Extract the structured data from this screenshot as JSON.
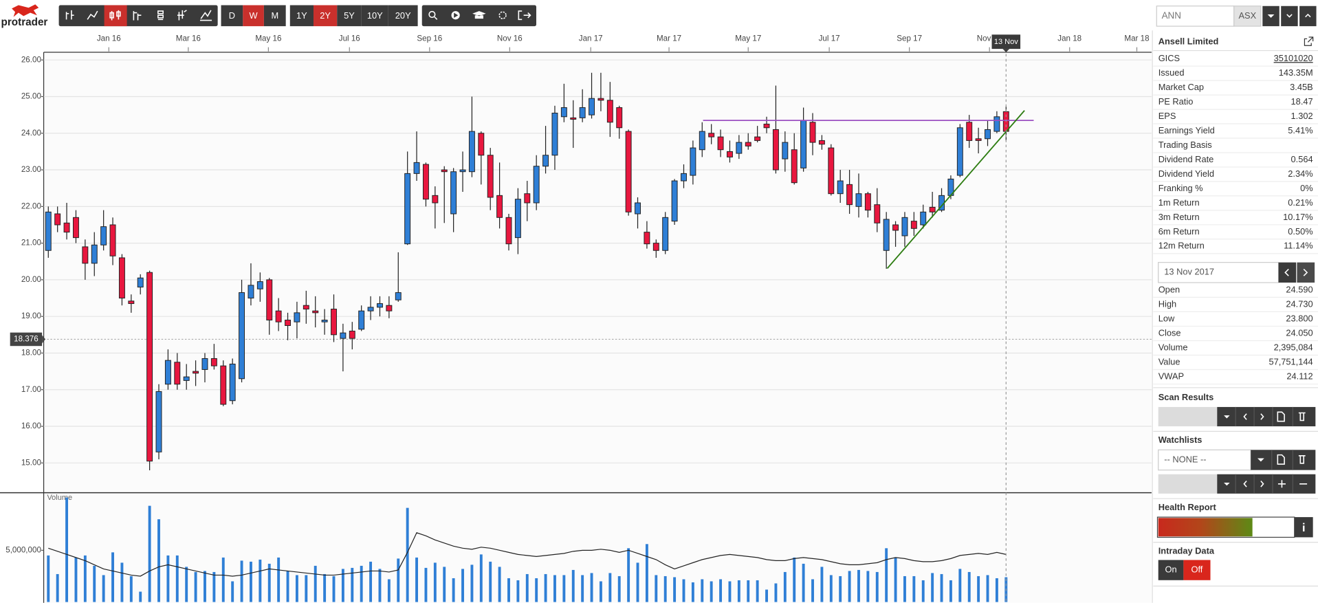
{
  "toolbar": {
    "logo": "protrader",
    "intervals": [
      "D",
      "W",
      "M"
    ],
    "active_interval": "W",
    "ranges": [
      "1Y",
      "2Y",
      "5Y",
      "10Y",
      "20Y"
    ],
    "active_range": "2Y"
  },
  "chart_data": [
    {
      "type": "candlestick",
      "up_color": "#2f7fd6",
      "down_color": "#e8173f",
      "open": [
        20.8,
        21.8,
        21.55,
        21.7,
        20.9,
        20.45,
        20.95,
        21.5,
        20.6,
        19.42,
        19.8,
        20.2,
        15.3,
        17.15,
        17.75,
        17.25,
        17.5,
        17.55,
        17.85,
        17.65,
        16.7,
        17.3,
        19.5,
        19.75,
        20.0,
        19.15,
        18.9,
        18.85,
        19.3,
        19.15,
        18.85,
        19.2,
        18.4,
        18.6,
        18.65,
        19.15,
        19.25,
        19.3,
        19.45,
        20.98,
        22.9,
        23.15,
        22.3,
        23.0,
        21.8,
        22.95,
        22.95,
        24.0,
        23.4,
        22.3,
        21.7,
        21.15,
        22.35,
        22.1,
        23.1,
        23.4,
        24.45,
        24.42,
        24.42,
        24.5,
        24.95,
        24.9,
        24.7,
        24.05,
        21.8,
        21.3,
        21.0,
        20.8,
        21.6,
        22.7,
        22.85,
        23.55,
        24.0,
        23.9,
        23.5,
        23.45,
        23.75,
        23.9,
        24.25,
        24.1,
        23.3,
        23.55,
        23.05,
        24.3,
        23.8,
        23.6,
        22.35,
        22.6,
        22.0,
        22.35,
        22.05,
        20.8,
        21.5,
        21.2,
        21.6,
        21.5,
        21.98,
        21.9,
        22.3,
        22.85,
        24.3,
        23.85,
        23.85,
        24.05,
        24.59
      ],
      "high": [
        22.0,
        22.0,
        22.1,
        21.9,
        21.1,
        21.3,
        21.9,
        21.7,
        20.7,
        19.6,
        20.15,
        20.25,
        17.15,
        18.1,
        18.0,
        17.7,
        17.8,
        18.0,
        18.25,
        17.8,
        17.85,
        20.0,
        20.45,
        20.2,
        20.05,
        19.5,
        19.1,
        19.4,
        19.7,
        19.55,
        19.2,
        19.6,
        18.8,
        18.85,
        19.3,
        19.55,
        19.55,
        19.55,
        20.75,
        23.5,
        24.05,
        23.2,
        22.55,
        23.1,
        23.05,
        23.5,
        25.0,
        24.05,
        23.6,
        23.2,
        21.8,
        22.5,
        22.7,
        23.4,
        24.2,
        24.75,
        25.35,
        24.9,
        25.2,
        25.65,
        25.65,
        25.4,
        24.75,
        24.1,
        22.25,
        21.6,
        21.1,
        21.85,
        22.75,
        23.15,
        23.8,
        24.3,
        24.25,
        24.1,
        23.8,
        23.95,
        24.0,
        24.2,
        24.45,
        25.3,
        24.05,
        24.0,
        24.7,
        24.55,
        23.95,
        23.7,
        23.0,
        23.0,
        22.9,
        22.4,
        22.5,
        21.85,
        21.6,
        21.85,
        21.85,
        22.05,
        22.4,
        22.5,
        22.85,
        24.25,
        24.5,
        24.15,
        24.35,
        24.6,
        24.73
      ],
      "low": [
        20.6,
        21.3,
        21.1,
        21.0,
        20.0,
        20.1,
        20.8,
        20.4,
        19.3,
        19.1,
        19.6,
        14.8,
        15.1,
        17.0,
        17.0,
        17.0,
        17.1,
        17.2,
        17.55,
        16.55,
        16.6,
        17.2,
        19.3,
        19.4,
        18.5,
        18.6,
        18.35,
        18.4,
        18.8,
        18.7,
        18.5,
        18.3,
        17.5,
        18.1,
        18.6,
        18.9,
        19.0,
        18.95,
        19.4,
        20.95,
        22.7,
        22.0,
        21.4,
        21.55,
        21.3,
        22.4,
        22.8,
        22.6,
        21.9,
        21.4,
        20.8,
        20.7,
        21.6,
        21.9,
        22.9,
        23.0,
        24.3,
        23.6,
        24.3,
        24.4,
        24.6,
        23.9,
        23.85,
        21.75,
        21.4,
        20.85,
        20.6,
        20.7,
        21.5,
        22.5,
        22.6,
        23.35,
        23.7,
        23.35,
        23.2,
        23.3,
        23.55,
        23.75,
        24.0,
        22.9,
        22.95,
        22.6,
        22.95,
        23.4,
        23.55,
        22.3,
        22.1,
        21.8,
        21.7,
        21.7,
        21.3,
        20.3,
        20.9,
        20.9,
        21.2,
        21.4,
        21.7,
        21.85,
        22.2,
        22.8,
        23.6,
        23.45,
        23.65,
        24.0,
        23.8
      ],
      "close": [
        21.85,
        21.5,
        21.3,
        21.15,
        20.45,
        20.95,
        21.45,
        20.65,
        19.5,
        19.35,
        20.05,
        15.05,
        16.95,
        17.8,
        17.15,
        17.35,
        17.45,
        17.85,
        17.65,
        16.6,
        17.7,
        19.65,
        19.85,
        19.95,
        18.9,
        18.85,
        18.75,
        19.1,
        19.2,
        19.1,
        18.9,
        18.5,
        18.55,
        18.4,
        19.15,
        19.25,
        19.35,
        19.15,
        19.65,
        22.9,
        23.2,
        22.2,
        22.1,
        22.95,
        22.95,
        23.0,
        24.05,
        23.4,
        22.25,
        21.7,
        20.98,
        22.2,
        22.1,
        23.1,
        23.4,
        24.55,
        24.7,
        24.38,
        24.7,
        24.95,
        24.9,
        24.3,
        24.15,
        21.85,
        22.1,
        20.98,
        20.8,
        21.7,
        22.7,
        22.9,
        23.6,
        24.05,
        23.9,
        23.55,
        23.35,
        23.75,
        23.65,
        23.8,
        24.15,
        23.0,
        23.75,
        22.65,
        24.35,
        23.75,
        23.7,
        22.35,
        22.7,
        22.05,
        22.35,
        21.9,
        21.55,
        21.65,
        21.35,
        21.7,
        21.4,
        21.85,
        21.85,
        22.3,
        22.75,
        24.15,
        23.8,
        23.8,
        24.1,
        24.45,
        24.05
      ],
      "xlim": [
        -0.5,
        119.8
      ],
      "xticks": [
        {
          "value": 6.57,
          "label": "Jan 16"
        },
        {
          "value": 15.2,
          "label": "Mar 16"
        },
        {
          "value": 23.9,
          "label": "May 16"
        },
        {
          "value": 32.7,
          "label": "Jul 16"
        },
        {
          "value": 41.4,
          "label": "Sep 16"
        },
        {
          "value": 50.1,
          "label": "Nov 16"
        },
        {
          "value": 58.9,
          "label": "Jan 17"
        },
        {
          "value": 67.4,
          "label": "Mar 17"
        },
        {
          "value": 76.0,
          "label": "May 17"
        },
        {
          "value": 84.8,
          "label": "Jul 17"
        },
        {
          "value": 93.5,
          "label": "Sep 17"
        },
        {
          "value": 102.2,
          "label": "Nov 17"
        },
        {
          "value": 110.9,
          "label": "Jan 18"
        },
        {
          "value": 118.2,
          "label": "Mar 18"
        }
      ],
      "ylim": [
        14.21,
        26.21
      ],
      "yticks": [
        {
          "value": 15,
          "label": "15.00"
        },
        {
          "value": 16,
          "label": "16.00"
        },
        {
          "value": 17,
          "label": "17.00"
        },
        {
          "value": 18,
          "label": "18.00"
        },
        {
          "value": 19,
          "label": "19.00"
        },
        {
          "value": 20,
          "label": "20.00"
        },
        {
          "value": 21,
          "label": "21.00"
        },
        {
          "value": 22,
          "label": "22.00"
        },
        {
          "value": 23,
          "label": "23.00"
        },
        {
          "value": 24,
          "label": "24.00"
        },
        {
          "value": 25,
          "label": "25.00"
        },
        {
          "value": 26,
          "label": "26.00"
        }
      ],
      "grid": true,
      "price_line": 18.376,
      "cursor": {
        "x": 104,
        "label": "13 Nov"
      },
      "trend_lines": [
        {
          "color": "#9b4fc2",
          "x": [
            71.1,
            107.0
          ],
          "y": [
            24.35,
            24.35
          ]
        },
        {
          "color": "#2e7d12",
          "x": [
            91.1,
            106.0
          ],
          "y": [
            20.31,
            24.62
          ]
        }
      ]
    },
    {
      "type": "bar",
      "title": "Volume",
      "color": "#2f7fd6",
      "values": [
        4500000,
        2700000,
        10100000,
        4300000,
        4500000,
        3500000,
        2600000,
        4800000,
        3800000,
        2500000,
        1000000,
        9300000,
        8000000,
        4500000,
        4500000,
        3400000,
        2900000,
        3000000,
        2900000,
        4300000,
        2000000,
        4000000,
        3900000,
        4100000,
        3700000,
        4300000,
        3000000,
        2600000,
        2600000,
        3500000,
        2700000,
        2500000,
        3200000,
        3300000,
        3500000,
        3900000,
        3200000,
        2200000,
        4200000,
        9100000,
        4300000,
        3300000,
        3800000,
        3400000,
        2300000,
        3200000,
        3600000,
        4600000,
        3900000,
        3400000,
        2300000,
        2100000,
        2700000,
        2300000,
        2700000,
        2600000,
        2600000,
        3100000,
        2600000,
        2800000,
        2000000,
        2800000,
        2500000,
        5200000,
        3800000,
        5600000,
        2600000,
        2500000,
        2400000,
        2200000,
        1900000,
        2200000,
        2000000,
        2200000,
        2000000,
        2100000,
        2100000,
        2100000,
        1200000,
        1800000,
        2900000,
        4300000,
        3700000,
        2200000,
        3400000,
        2600000,
        2500000,
        3000000,
        3100000,
        3000000,
        2900000,
        5200000,
        4300000,
        2500000,
        2500000,
        2100000,
        2800000,
        2700000,
        2100000,
        3200000,
        2900000,
        2500000,
        2600000,
        2300000,
        2395084
      ],
      "average": {
        "color": "#222222",
        "values": [
          5200000,
          4900000,
          4600000,
          4300000,
          4000000,
          3600000,
          3200000,
          3000000,
          2800000,
          2600000,
          2500000,
          3000000,
          3400000,
          3600000,
          3400000,
          3200000,
          3000000,
          2800000,
          2600000,
          2600000,
          2500000,
          2600000,
          2800000,
          3000000,
          3200000,
          3100000,
          3000000,
          2900000,
          2800000,
          2700000,
          2600000,
          2600000,
          2700000,
          2800000,
          2900000,
          3000000,
          3000000,
          2900000,
          3100000,
          4800000,
          6700000,
          6400000,
          6000000,
          5700000,
          5400000,
          5200000,
          5100000,
          5300000,
          5200000,
          5000000,
          4800000,
          4600000,
          4500000,
          4400000,
          4500000,
          4600000,
          4700000,
          4900000,
          5000000,
          5000000,
          5100000,
          5000000,
          4800000,
          5000000,
          4700000,
          4400000,
          4100000,
          3600000,
          3200000,
          3500000,
          3800000,
          4100000,
          4300000,
          4500000,
          4600000,
          4500000,
          4400000,
          4300000,
          4100000,
          4000000,
          4000000,
          4200000,
          4300000,
          4200000,
          4100000,
          3900000,
          3700000,
          3600000,
          3600000,
          3700000,
          3800000,
          4100000,
          4300000,
          4200000,
          4000000,
          3900000,
          3900000,
          4000000,
          4200000,
          4500000,
          4600000,
          4700000,
          4600000,
          4800000,
          4600000
        ]
      },
      "ylim": [
        0,
        10400000
      ],
      "yticks": [
        {
          "value": 5000000,
          "label": "5,000,000"
        }
      ]
    }
  ],
  "sidebar": {
    "symbol": "ANN",
    "exchange": "ASX",
    "company": "Ansell Limited",
    "fundamentals": [
      [
        "GICS",
        "35101020"
      ],
      [
        "Issued",
        "143.35M"
      ],
      [
        "Market Cap",
        "3.45B"
      ],
      [
        "PE Ratio",
        "18.47"
      ],
      [
        "EPS",
        "1.302"
      ],
      [
        "Earnings Yield",
        "5.41%"
      ],
      [
        "Trading Basis"
      ],
      [
        "Dividend Rate",
        "0.564"
      ],
      [
        "Dividend Yield",
        "2.34%"
      ],
      [
        "Franking %",
        "0%"
      ],
      [
        "1m Return",
        "0.21%"
      ],
      [
        "3m Return",
        "10.17%"
      ],
      [
        "6m Return",
        "0.50%"
      ],
      [
        "12m Return",
        "11.14%"
      ]
    ],
    "date": "13 Nov 2017",
    "quote": [
      [
        "Open",
        "24.590"
      ],
      [
        "High",
        "24.730"
      ],
      [
        "Low",
        "23.800"
      ],
      [
        "Close",
        "24.050"
      ],
      [
        "Volume",
        "2,395,084"
      ],
      [
        "Value",
        "57,751,144"
      ],
      [
        "VWAP",
        "24.112"
      ]
    ],
    "scan_results": "Scan Results",
    "watchlists": "Watchlists",
    "watchlist_selected": "-- NONE --",
    "health_report": "Health Report",
    "intraday": "Intraday Data",
    "intraday_options": [
      "On",
      "Off"
    ],
    "intraday_active": "Off"
  }
}
